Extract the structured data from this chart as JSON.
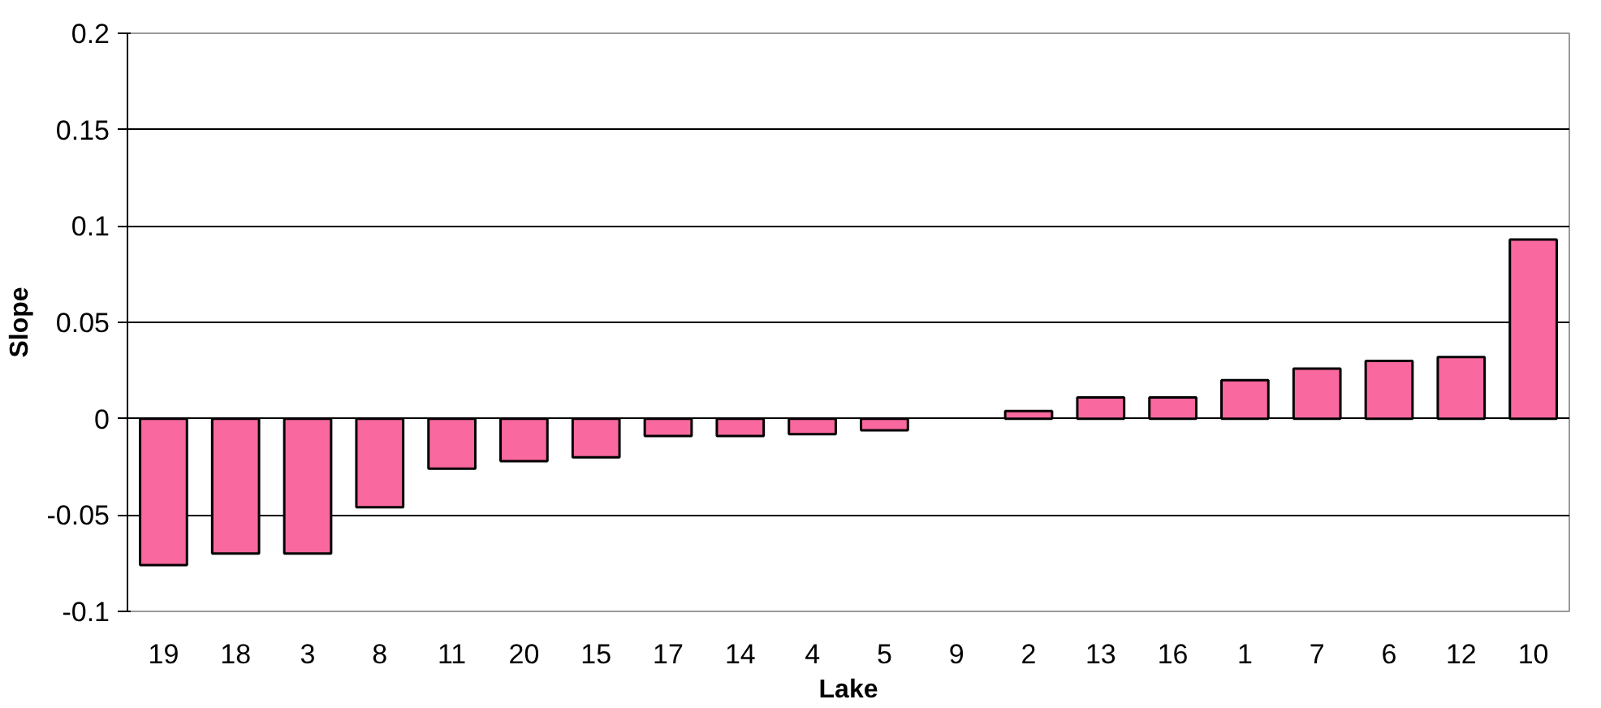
{
  "chart_data": {
    "type": "bar",
    "xlabel": "Lake",
    "ylabel": "Slope",
    "categories": [
      "19",
      "18",
      "3",
      "8",
      "11",
      "20",
      "15",
      "17",
      "14",
      "4",
      "5",
      "9",
      "2",
      "13",
      "16",
      "1",
      "7",
      "6",
      "12",
      "10"
    ],
    "values": [
      -0.076,
      -0.07,
      -0.07,
      -0.046,
      -0.026,
      -0.022,
      -0.02,
      -0.009,
      -0.009,
      -0.008,
      -0.006,
      null,
      0.004,
      0.011,
      0.011,
      0.02,
      0.026,
      0.03,
      0.032,
      0.093
    ],
    "color": "#f9689f",
    "ylim": [
      -0.1,
      0.2
    ],
    "yticks": [
      -0.1,
      -0.05,
      0,
      0.05,
      0.1,
      0.15,
      0.2
    ],
    "grid": "y"
  }
}
